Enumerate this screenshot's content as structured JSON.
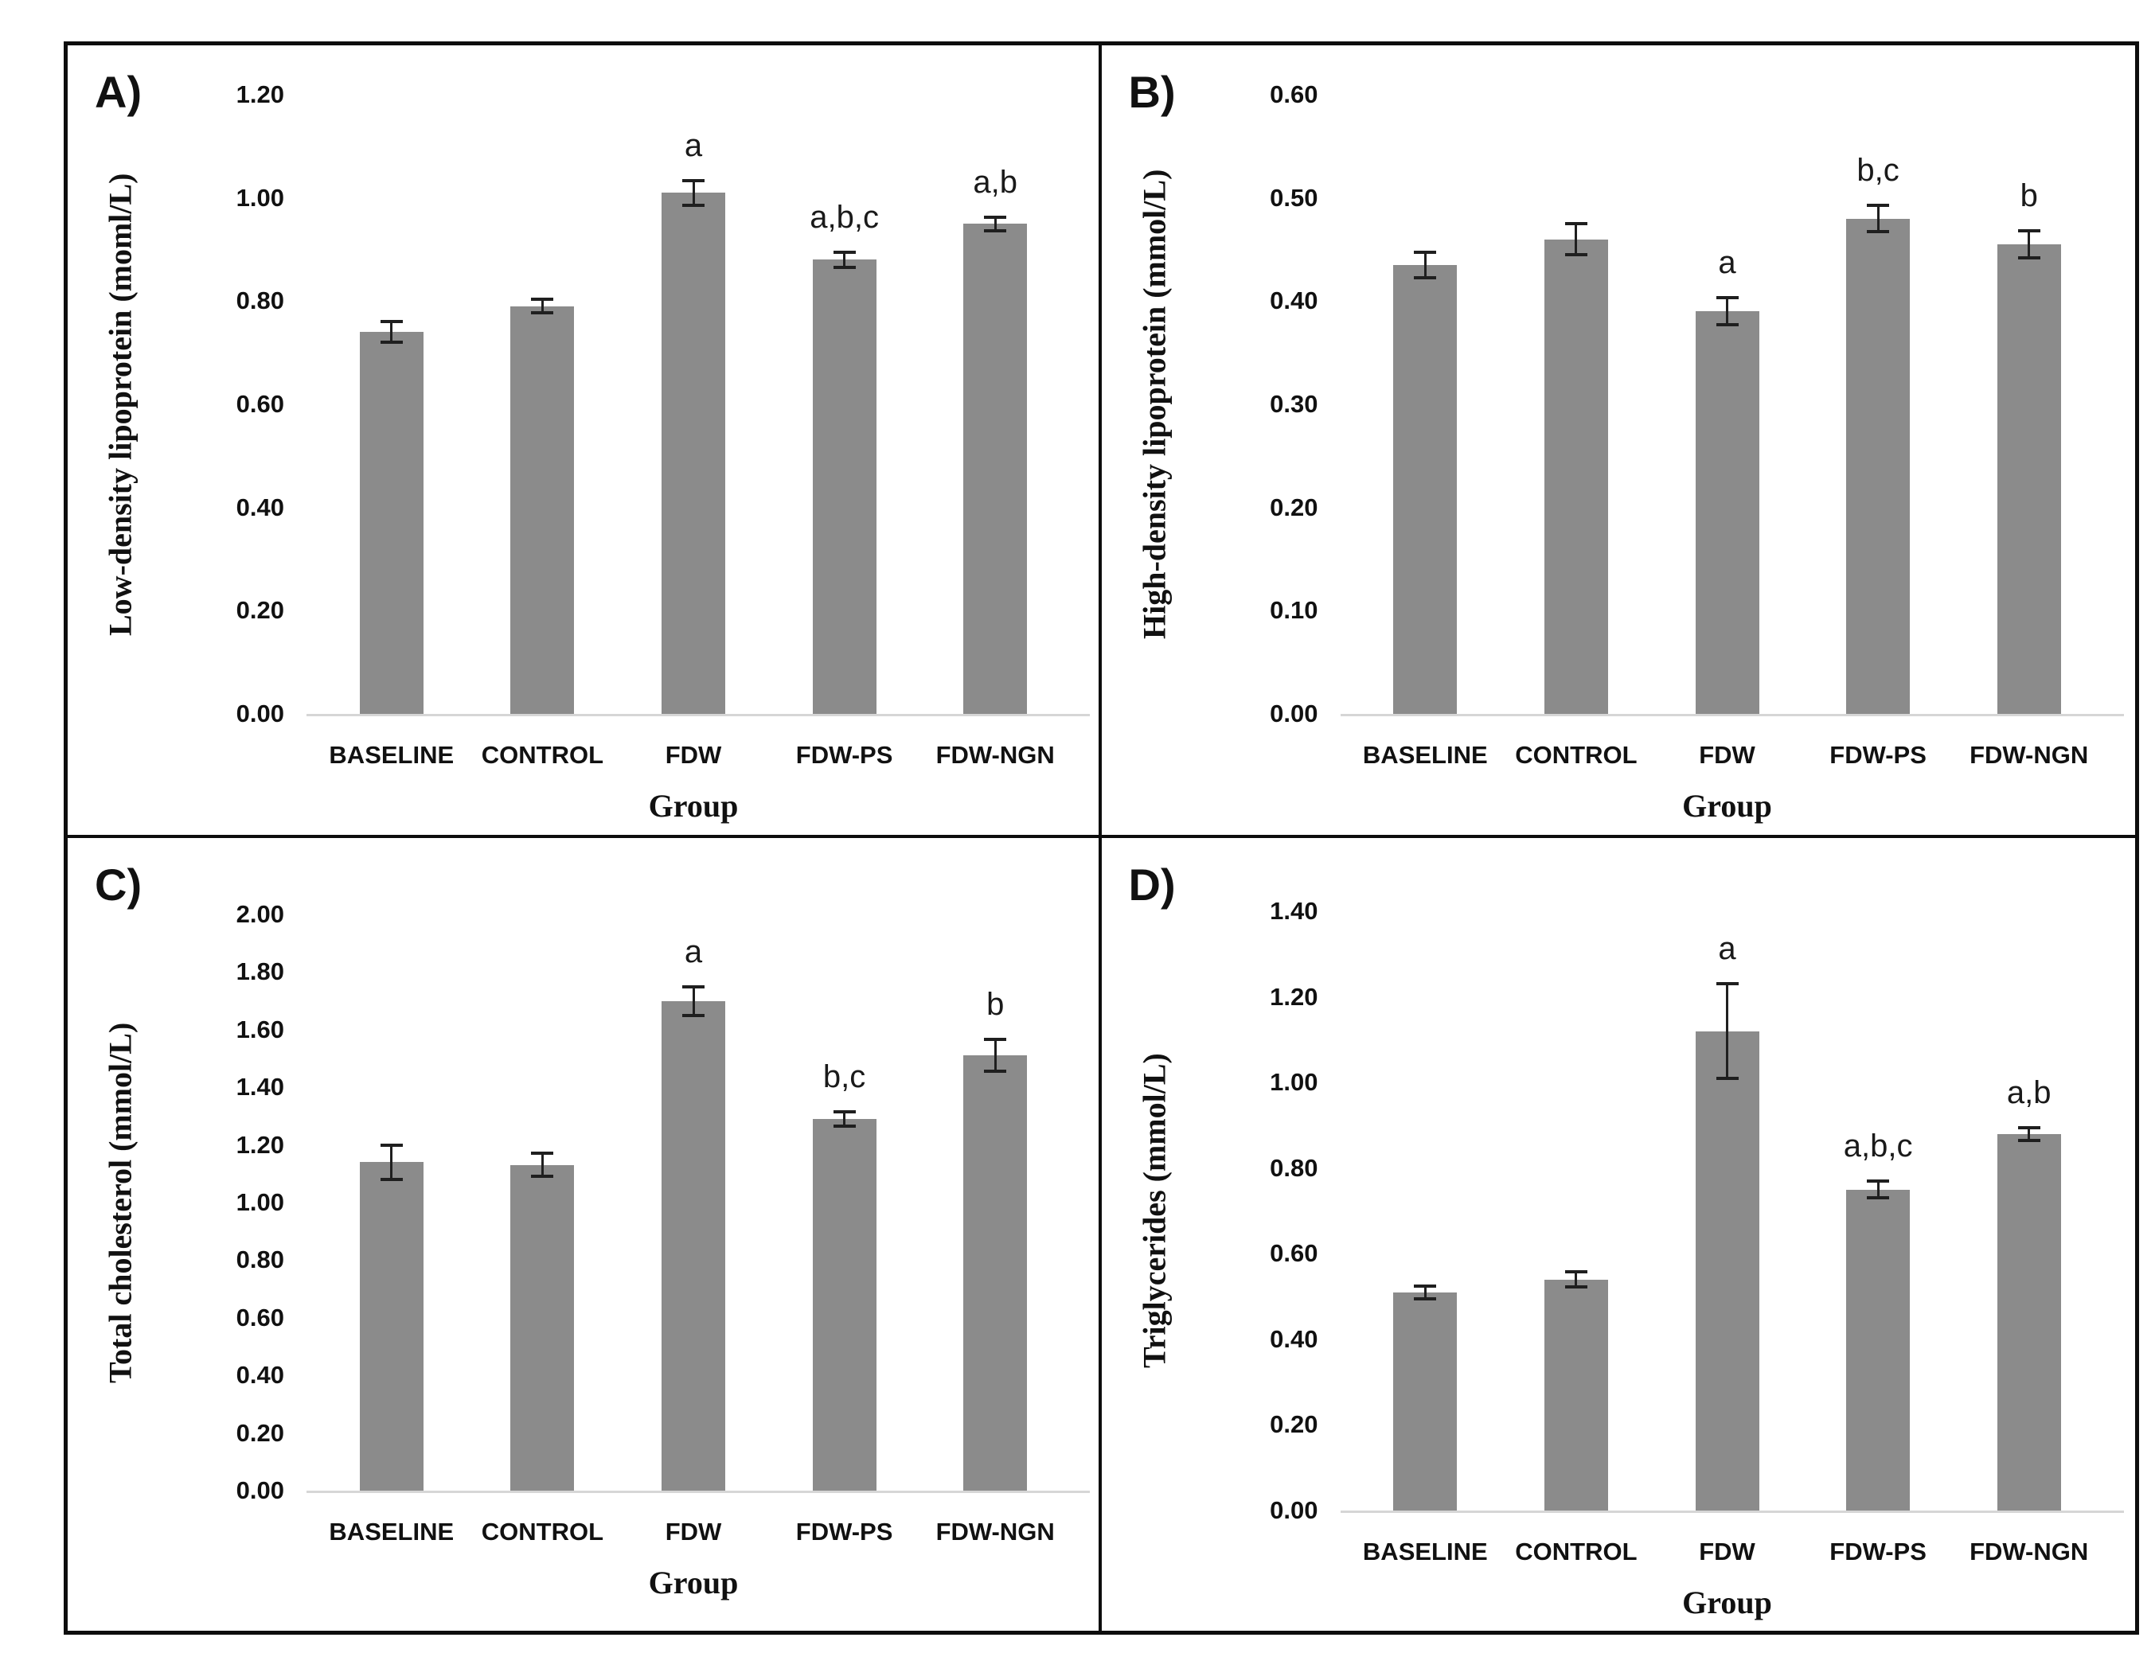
{
  "figure": {
    "description_visible_text_only": true,
    "group_axis_label": "Group"
  },
  "colors": {
    "bar": "#8b8b8b",
    "error_bar": "#1f1f1f",
    "axis_line": "#d6d6d6",
    "border": "#0d0d0d",
    "text": "#111111"
  },
  "chart_data": [
    {
      "type": "bar",
      "panel_label": "A)",
      "title": "",
      "ylabel": "Low-density lipoprotein (moml/L)",
      "xlabel": "Group",
      "ylim": [
        0,
        1.2
      ],
      "ytick_step": 0.2,
      "grid": false,
      "legend": false,
      "categories": [
        "BASELINE",
        "CONTROL",
        "FDW",
        "FDW-PS",
        "FDW-NGN"
      ],
      "values": [
        0.74,
        0.79,
        1.01,
        0.88,
        0.95
      ],
      "errors": [
        0.02,
        0.013,
        0.024,
        0.015,
        0.013
      ],
      "annotations": [
        "",
        "",
        "a",
        "a,b,c",
        "a,b"
      ]
    },
    {
      "type": "bar",
      "panel_label": "B)",
      "title": "",
      "ylabel": "High-density lipoprotein (mmol/L)",
      "xlabel": "Group",
      "ylim": [
        0,
        0.6
      ],
      "ytick_step": 0.1,
      "grid": false,
      "legend": false,
      "categories": [
        "BASELINE",
        "CONTROL",
        "FDW",
        "FDW-PS",
        "FDW-NGN"
      ],
      "values": [
        0.435,
        0.46,
        0.39,
        0.48,
        0.455
      ],
      "errors": [
        0.012,
        0.015,
        0.013,
        0.013,
        0.013
      ],
      "annotations": [
        "",
        "",
        "a",
        "b,c",
        "b"
      ]
    },
    {
      "type": "bar",
      "panel_label": "C)",
      "title": "",
      "ylabel": "Total cholesterol (mmol/L)",
      "xlabel": "Group",
      "ylim": [
        0,
        2.0
      ],
      "ytick_step": 0.2,
      "grid": false,
      "legend": false,
      "categories": [
        "BASELINE",
        "CONTROL",
        "FDW",
        "FDW-PS",
        "FDW-NGN"
      ],
      "values": [
        1.14,
        1.13,
        1.7,
        1.29,
        1.51
      ],
      "errors": [
        0.06,
        0.04,
        0.05,
        0.025,
        0.055
      ],
      "annotations": [
        "",
        "",
        "a",
        "b,c",
        "b"
      ]
    },
    {
      "type": "bar",
      "panel_label": "D)",
      "title": "",
      "ylabel": "Triglycerides (mmol/L)",
      "xlabel": "Group",
      "ylim": [
        0,
        1.4
      ],
      "ytick_step": 0.2,
      "grid": false,
      "legend": false,
      "categories": [
        "BASELINE",
        "CONTROL",
        "FDW",
        "FDW-PS",
        "FDW-NGN"
      ],
      "values": [
        0.51,
        0.54,
        1.12,
        0.75,
        0.88
      ],
      "errors": [
        0.015,
        0.017,
        0.11,
        0.02,
        0.015
      ],
      "annotations": [
        "",
        "",
        "a",
        "a,b,c",
        "a,b"
      ]
    }
  ]
}
